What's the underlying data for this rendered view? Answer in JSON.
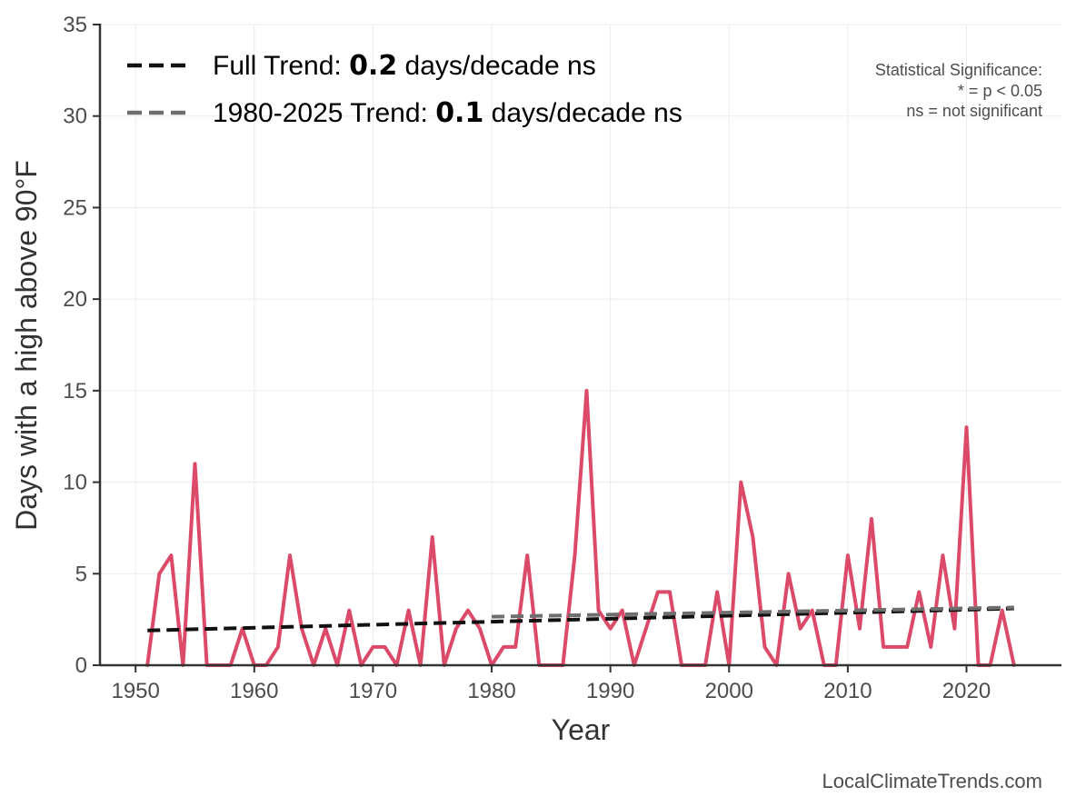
{
  "chart_data": {
    "type": "line",
    "title": "",
    "xlabel": "Year",
    "ylabel": "Days with a high above 90°F",
    "xlim": [
      1947,
      2028
    ],
    "ylim": [
      0,
      35
    ],
    "xticks": [
      1950,
      1960,
      1970,
      1980,
      1990,
      2000,
      2010,
      2020
    ],
    "yticks": [
      0,
      5,
      10,
      15,
      20,
      25,
      30,
      35
    ],
    "grid": true,
    "legend_placement": "top-left",
    "series": [
      {
        "color": "#dc4a6a",
        "x": [
          1951,
          1952,
          1953,
          1954,
          1955,
          1956,
          1957,
          1958,
          1959,
          1960,
          1961,
          1962,
          1963,
          1964,
          1965,
          1966,
          1967,
          1968,
          1969,
          1970,
          1971,
          1972,
          1973,
          1974,
          1975,
          1976,
          1977,
          1978,
          1979,
          1980,
          1981,
          1982,
          1983,
          1984,
          1985,
          1986,
          1987,
          1988,
          1989,
          1990,
          1991,
          1992,
          1993,
          1994,
          1995,
          1996,
          1997,
          1998,
          1999,
          2000,
          2001,
          2002,
          2003,
          2004,
          2005,
          2006,
          2007,
          2008,
          2009,
          2010,
          2011,
          2012,
          2013,
          2014,
          2015,
          2016,
          2017,
          2018,
          2019,
          2020,
          2021,
          2022,
          2023,
          2024
        ],
        "y": [
          0,
          5,
          6,
          0,
          11,
          0,
          0,
          0,
          2,
          0,
          0,
          1,
          6,
          2,
          0,
          2,
          0,
          3,
          0,
          1,
          1,
          0,
          3,
          0,
          7,
          0,
          2,
          3,
          2,
          0,
          1,
          1,
          6,
          0,
          0,
          0,
          6,
          15,
          3,
          2,
          3,
          0,
          2,
          4,
          4,
          0,
          0,
          0,
          4,
          0,
          10,
          7,
          1,
          0,
          5,
          2,
          3,
          0,
          0,
          6,
          2,
          8,
          1,
          1,
          1,
          4,
          1,
          6,
          2,
          13,
          0,
          0,
          3,
          0
        ]
      }
    ],
    "trends": [
      {
        "label_prefix": "Full Trend: ",
        "label_value": "0.2",
        "label_suffix": " days/decade ns",
        "color": "#111111",
        "x": [
          1951,
          2024
        ],
        "y": [
          1.9,
          3.1
        ]
      },
      {
        "label_prefix": "1980-2025 Trend: ",
        "label_value": "0.1",
        "label_suffix": " days/decade ns",
        "color": "#6e6e6e",
        "x": [
          1980,
          2024
        ],
        "y": [
          2.65,
          3.15
        ]
      }
    ],
    "annotations": {
      "significance_lines": [
        "Statistical Significance:",
        "* = p < 0.05",
        "ns = not significant"
      ]
    }
  },
  "watermark": "LocalClimateTrends.com",
  "colors": {
    "axis": "#333333",
    "grid": "#ebebeb",
    "tick_text": "#4d4d4d"
  }
}
